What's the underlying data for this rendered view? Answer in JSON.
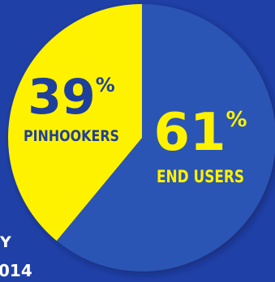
{
  "chart_data": {
    "type": "pie",
    "title": "",
    "slices": [
      {
        "label": "END USERS",
        "value": 61,
        "display": "61",
        "unit": "%",
        "color": "#2c55b4",
        "label_color": "#fff200"
      },
      {
        "label": "PINHOOKERS",
        "value": 39,
        "display": "39",
        "unit": "%",
        "color": "#fff200",
        "label_color": "#1f3f9d"
      }
    ]
  },
  "edge_text": {
    "line1": "Y",
    "line2": "014"
  },
  "colors": {
    "background": "#1f40a6",
    "slice_outline": "#2448a8"
  }
}
